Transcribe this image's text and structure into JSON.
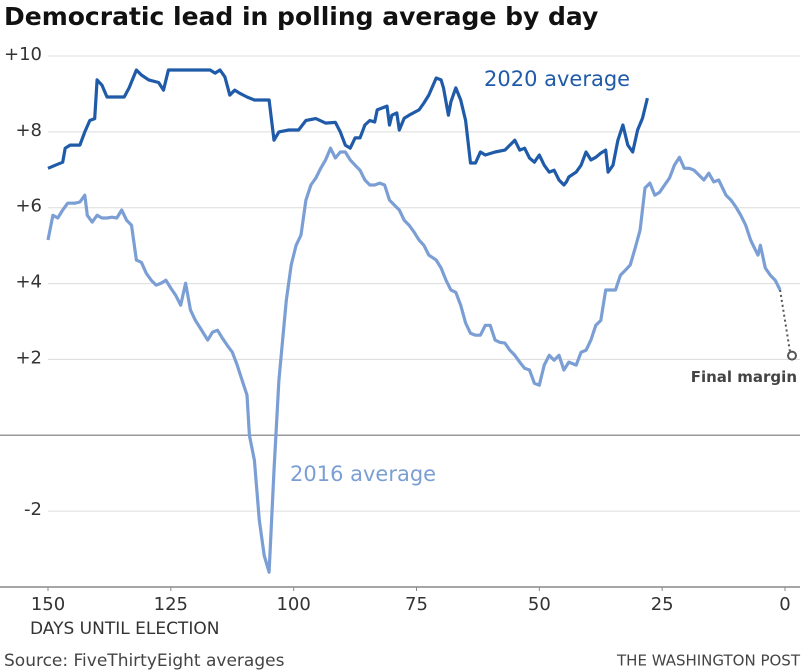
{
  "chart_data": {
    "type": "line",
    "title": "Democratic lead in polling average by day",
    "x_label": "DAYS UNTIL ELECTION",
    "source": "Source: FiveThirtyEight averages",
    "credit": "THE WASHINGTON POST",
    "xlim": [
      150,
      0
    ],
    "ylim": [
      -4,
      10
    ],
    "xticks": [
      150,
      125,
      100,
      75,
      50,
      25,
      0
    ],
    "yticks": [
      {
        "value": 10,
        "label": "+10"
      },
      {
        "value": 8,
        "label": "+8"
      },
      {
        "value": 6,
        "label": "+6"
      },
      {
        "value": 4,
        "label": "+4"
      },
      {
        "value": 2,
        "label": "+2"
      },
      -2
    ],
    "grid": true,
    "zero_line": true,
    "series": [
      {
        "name": "2020 average",
        "color": "#1f5ba8",
        "x": [
          150,
          148.5,
          147,
          146.5,
          145.5,
          143.5,
          142.5,
          141.5,
          140.5,
          140,
          139,
          138,
          136,
          134.5,
          133.5,
          132,
          131,
          129.5,
          127.5,
          126.5,
          125.5,
          124.5,
          123,
          119,
          117,
          116,
          115,
          114,
          113,
          112,
          111,
          109.5,
          108,
          106.5,
          105,
          104,
          103,
          101,
          99,
          97.5,
          95.5,
          93.5,
          91.5,
          90.5,
          89.5,
          88.5,
          87.5,
          86.5,
          85.5,
          84.5,
          83.5,
          83,
          82,
          81,
          80.5,
          80,
          79,
          78.5,
          77.5,
          76.5,
          74.5,
          73.5,
          72.5,
          71,
          70,
          69.5,
          68.5,
          68,
          67,
          66,
          65,
          64,
          63,
          62,
          61,
          59,
          57,
          56,
          55,
          54,
          53,
          52,
          51,
          50,
          49,
          48,
          47,
          46,
          45,
          44.5,
          44,
          42.5,
          41.5,
          40.5,
          39.5,
          38.5,
          37.5,
          36.5,
          36,
          35,
          34,
          33,
          32,
          31,
          30,
          29,
          28
        ],
        "values": [
          7.04,
          7.12,
          7.2,
          7.57,
          7.65,
          7.65,
          8.0,
          8.3,
          8.35,
          9.37,
          9.23,
          8.92,
          8.92,
          8.92,
          9.16,
          9.63,
          9.5,
          9.37,
          9.3,
          9.1,
          9.63,
          9.63,
          9.63,
          9.63,
          9.63,
          9.55,
          9.63,
          9.45,
          8.97,
          9.1,
          9.02,
          8.92,
          8.84,
          8.84,
          8.84,
          7.78,
          8.0,
          8.05,
          8.05,
          8.3,
          8.35,
          8.23,
          8.25,
          8.0,
          7.65,
          7.57,
          7.84,
          7.84,
          8.18,
          8.3,
          8.26,
          8.58,
          8.63,
          8.68,
          8.18,
          8.44,
          8.5,
          8.05,
          8.36,
          8.44,
          8.58,
          8.76,
          8.97,
          9.42,
          9.37,
          9.16,
          8.44,
          8.79,
          9.16,
          8.84,
          8.3,
          7.18,
          7.18,
          7.47,
          7.39,
          7.47,
          7.52,
          7.65,
          7.78,
          7.52,
          7.57,
          7.31,
          7.2,
          7.39,
          7.12,
          6.94,
          6.99,
          6.73,
          6.6,
          6.68,
          6.81,
          6.94,
          7.12,
          7.47,
          7.26,
          7.33,
          7.44,
          7.52,
          6.94,
          7.12,
          7.78,
          8.18,
          7.65,
          7.47,
          8.05,
          8.36,
          8.89
        ]
      },
      {
        "name": "2016 average",
        "color": "#7b9fd4",
        "x": [
          150,
          149,
          148,
          147,
          146,
          144.5,
          143.5,
          142.5,
          142,
          141,
          140,
          139,
          138,
          137,
          136,
          135,
          134,
          133,
          132,
          131,
          130,
          129,
          128,
          127,
          126,
          125,
          124,
          123,
          122,
          121,
          120,
          118.5,
          117.5,
          116.5,
          115.5,
          114.5,
          113.5,
          112.5,
          111.5,
          110.5,
          109.5,
          109,
          108,
          107,
          106,
          105,
          104,
          103,
          101.5,
          100.5,
          99.5,
          98.5,
          97.5,
          96.5,
          95.5,
          94.5,
          93.5,
          92.5,
          91.5,
          90.5,
          89.5,
          88.5,
          87.5,
          86.5,
          85.5,
          84.5,
          83.5,
          82.5,
          81.5,
          80.5,
          79.5,
          78.5,
          77.5,
          76.5,
          75.5,
          74.5,
          73.5,
          72.5,
          71,
          70,
          69,
          68,
          67,
          66,
          65,
          64,
          63,
          62,
          61,
          60,
          59,
          58,
          57,
          56,
          55,
          54,
          53,
          52,
          51,
          50,
          49,
          48,
          47,
          46,
          45,
          44,
          42.5,
          41.5,
          40.5,
          39.5,
          38.5,
          37.5,
          36.5,
          35.5,
          34.5,
          33.5,
          32.5,
          31.5,
          30.5,
          29.5,
          28.5,
          27.5,
          26.5,
          25.5,
          24.5,
          23.5,
          22.5,
          21.5,
          20.5,
          19.5,
          18.5,
          17.5,
          16.5,
          15.5,
          14.5,
          13.5,
          12,
          11,
          10,
          9,
          8,
          7,
          6,
          5.5,
          5,
          4,
          3,
          2,
          1
        ],
        "values": [
          5.15,
          5.8,
          5.73,
          5.94,
          6.12,
          6.12,
          6.15,
          6.33,
          5.8,
          5.62,
          5.8,
          5.73,
          5.73,
          5.75,
          5.73,
          5.94,
          5.67,
          5.54,
          4.62,
          4.56,
          4.27,
          4.09,
          3.96,
          4.01,
          4.09,
          3.88,
          3.69,
          3.43,
          4.01,
          3.3,
          3.03,
          2.72,
          2.51,
          2.72,
          2.77,
          2.56,
          2.37,
          2.19,
          1.85,
          1.45,
          1.06,
          0,
          -0.66,
          -2.24,
          -3.17,
          -3.61,
          -0.92,
          1.45,
          3.56,
          4.49,
          5.01,
          5.28,
          6.2,
          6.6,
          6.78,
          7.04,
          7.26,
          7.57,
          7.31,
          7.47,
          7.47,
          7.26,
          7.12,
          6.99,
          6.73,
          6.6,
          6.6,
          6.65,
          6.6,
          6.2,
          6.07,
          5.94,
          5.67,
          5.54,
          5.36,
          5.15,
          5.01,
          4.75,
          4.62,
          4.41,
          4.09,
          3.83,
          3.77,
          3.43,
          2.96,
          2.69,
          2.64,
          2.64,
          2.9,
          2.9,
          2.51,
          2.45,
          2.43,
          2.24,
          2.11,
          1.93,
          1.77,
          1.72,
          1.37,
          1.32,
          1.85,
          2.11,
          1.98,
          2.11,
          1.72,
          1.93,
          1.85,
          2.19,
          2.24,
          2.51,
          2.9,
          3.03,
          3.83,
          3.83,
          3.83,
          4.22,
          4.35,
          4.49,
          4.93,
          5.41,
          6.52,
          6.65,
          6.33,
          6.41,
          6.6,
          6.78,
          7.12,
          7.33,
          7.04,
          7.04,
          6.99,
          6.86,
          6.73,
          6.91,
          6.68,
          6.73,
          6.33,
          6.2,
          6.02,
          5.8,
          5.54,
          5.15,
          4.88,
          4.75,
          5.01,
          4.41,
          4.22,
          4.09,
          3.83
        ]
      }
    ],
    "final_margin": {
      "label": "Final margin",
      "x": 0,
      "value": 2.1
    }
  }
}
